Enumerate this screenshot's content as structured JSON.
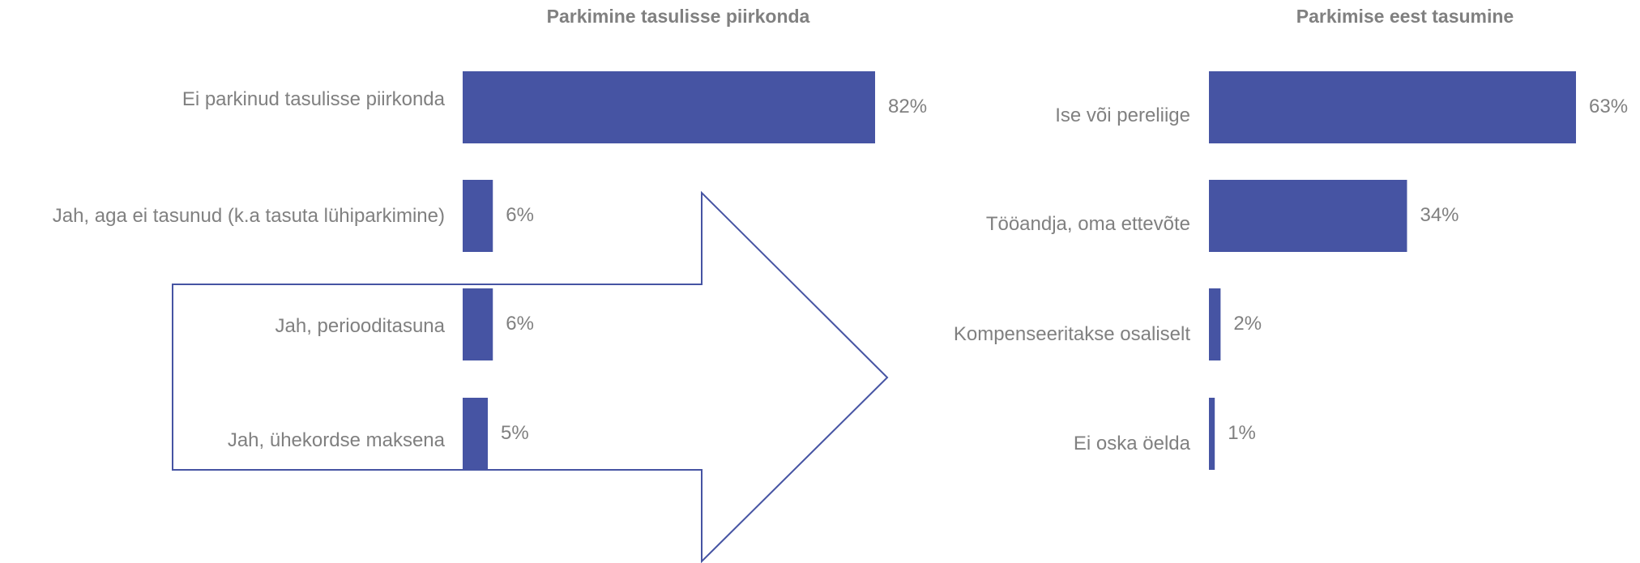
{
  "chart_data": [
    {
      "type": "bar",
      "orientation": "horizontal",
      "title": "Parkimine tasulisse piirkonda",
      "categories": [
        "Ei parkinud tasulisse piirkonda",
        "Jah, aga ei tasunud (k.a tasuta lühiparkimine)",
        "Jah, perioodi­tasuna",
        "Jah, ühekordse maksena"
      ],
      "values": [
        82,
        6,
        6,
        5
      ],
      "value_labels": [
        "82%",
        "6%",
        "6%",
        "5%"
      ],
      "color": "#4654a3"
    },
    {
      "type": "bar",
      "orientation": "horizontal",
      "title": "Parkimise eest tasumine",
      "categories": [
        "Ise või pereliige",
        "Tööandja, oma ettevõte",
        "Kompenseeritakse osaliselt",
        "Ei oska öelda"
      ],
      "values": [
        63,
        34,
        2,
        1
      ],
      "value_labels": [
        "63%",
        "34%",
        "2%",
        "1%"
      ],
      "color": "#4654a3"
    }
  ]
}
